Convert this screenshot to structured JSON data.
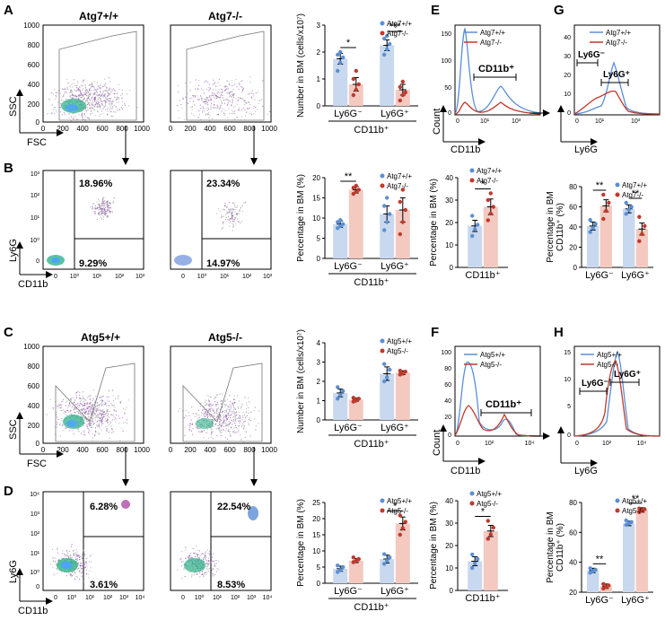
{
  "colors": {
    "wt": "#5b8fd6",
    "ko": "#c0392b",
    "wt_bar": "#c8d8ee",
    "ko_bar": "#f3c9c0",
    "axis": "#000000",
    "gate": "#777777"
  },
  "panels": {
    "A": "A",
    "B": "B",
    "C": "C",
    "D": "D",
    "E": "E",
    "F": "F",
    "G": "G",
    "H": "H"
  },
  "row1": {
    "wt_title": "Atg7+/+",
    "ko_title": "Atg7-/-",
    "ssc": "SSC",
    "fsc": "FSC",
    "ly6g": "Ly6G",
    "cd11b": "CD11b",
    "scatter_yticks": [
      "1000",
      "800",
      "600",
      "400",
      "200",
      "0"
    ],
    "scatter_xticks": [
      "0",
      "200",
      "400",
      "600",
      "800",
      "1000"
    ],
    "log_yticks": [
      "10³",
      "10²",
      "10¹",
      "10⁰",
      "0"
    ],
    "log_xticks": [
      "0",
      "10⁰",
      "10¹",
      "10²",
      "10³"
    ],
    "wt_q_up": "18.96%",
    "wt_q_low": "9.29%",
    "ko_q_up": "23.34%",
    "ko_q_low": "14.97%"
  },
  "row2": {
    "wt_title": "Atg5+/+",
    "ko_title": "Atg5-/-",
    "ssc": "SSC",
    "fsc": "FSC",
    "ly6g": "Ly6G",
    "cd11b": "CD11b",
    "scatter_yticks": [
      "1000",
      "800",
      "600",
      "400",
      "200",
      "0"
    ],
    "scatter_xticks": [
      "0",
      "200",
      "400",
      "600",
      "800",
      "1000"
    ],
    "log_yticks": [
      "10⁴",
      "10³",
      "10²",
      "10¹",
      "10⁰",
      "0"
    ],
    "log_xticks": [
      "0",
      "10⁰",
      "10¹",
      "10²",
      "10³",
      "10⁴"
    ],
    "wt_q_up": "6.28%",
    "wt_q_low": "3.61%",
    "ko_q_up": "22.54%",
    "ko_q_low": "8.53%"
  },
  "hist": {
    "E": {
      "count": "Count",
      "xlabel": "CD11b",
      "gate": "CD11b⁺",
      "yticks": [
        "150",
        "100",
        "50",
        "0"
      ],
      "xticks": [
        "0",
        "10¹",
        "10³"
      ],
      "leg_wt": "Atg7+/+",
      "leg_ko": "Atg7-/-"
    },
    "F": {
      "count": "Count",
      "xlabel": "CD11b",
      "gate": "CD11b⁺",
      "yticks": [
        "100",
        "80",
        "60",
        "40",
        "20",
        "0"
      ],
      "xticks": [
        "0",
        "10²",
        "10⁴"
      ],
      "leg_wt": "Atg5+/+",
      "leg_ko": "Atg5-/-"
    },
    "G": {
      "xlabel": "Ly6G",
      "gate_neg": "Ly6G⁻",
      "gate_pos": "Ly6G⁺",
      "yticks": [
        "40",
        "30",
        "20",
        "10",
        "0"
      ],
      "xticks": [
        "0",
        "10¹",
        "10³"
      ],
      "leg_wt": "Atg7+/+",
      "leg_ko": "Atg7-/-"
    },
    "H": {
      "xlabel": "Ly6G",
      "gate_neg": "Ly6G⁻",
      "gate_pos": "Ly6G⁺",
      "yticks": [
        "15",
        "10",
        "5",
        "0"
      ],
      "xticks": [
        "0",
        "10²",
        "10⁴"
      ],
      "leg_wt": "Atg5+/+",
      "leg_ko": "Atg5-/-"
    }
  },
  "chart_data": [
    {
      "id": "A",
      "type": "bar",
      "ylabel": "Number in BM (cells/x10⁷)",
      "ylim": [
        0,
        3
      ],
      "yticks": [
        "0",
        "1",
        "2",
        "3"
      ],
      "categories": [
        "Ly6G⁻",
        "Ly6G⁺"
      ],
      "group_label": "CD11b⁺",
      "series": [
        {
          "name": "Atg7+/+",
          "values": [
            1.75,
            2.25
          ],
          "err": [
            0.2,
            0.2
          ],
          "points": [
            [
              1.3,
              1.6,
              1.8,
              1.9,
              2.0
            ],
            [
              1.9,
              2.1,
              2.3,
              2.5,
              2.6
            ]
          ]
        },
        {
          "name": "Atg7-/-",
          "values": [
            0.8,
            0.6
          ],
          "err": [
            0.25,
            0.2
          ],
          "points": [
            [
              0.4,
              0.6,
              0.8,
              1.0,
              1.3
            ],
            [
              0.2,
              0.4,
              0.5,
              0.7,
              0.9
            ]
          ]
        }
      ],
      "sig": [
        "*",
        "***"
      ]
    },
    {
      "id": "B",
      "type": "bar",
      "ylabel": "Percentage in BM (%)",
      "ylim": [
        0,
        20
      ],
      "yticks": [
        "0",
        "5",
        "10",
        "15",
        "20"
      ],
      "categories": [
        "Ly6G⁻",
        "Ly6G⁺"
      ],
      "group_label": "CD11b⁺",
      "series": [
        {
          "name": "Atg7+/+",
          "values": [
            8.5,
            11
          ],
          "err": [
            0.8,
            2
          ],
          "points": [
            [
              7.5,
              8,
              8.5,
              9,
              9.5
            ],
            [
              7,
              9,
              11,
              13,
              15
            ]
          ]
        },
        {
          "name": "Atg7-/-",
          "values": [
            17,
            12
          ],
          "err": [
            0.8,
            3
          ],
          "points": [
            [
              16,
              16.5,
              17,
              17.5,
              18
            ],
            [
              6,
              9,
              12,
              14,
              17
            ]
          ]
        }
      ],
      "sig": [
        "**",
        ""
      ]
    },
    {
      "id": "C",
      "type": "bar",
      "ylabel": "Number in BM (cells/x10⁷)",
      "ylim": [
        0,
        4
      ],
      "yticks": [
        "0",
        "1",
        "2",
        "3",
        "4"
      ],
      "categories": [
        "Ly6G⁻",
        "Ly6G⁺"
      ],
      "group_label": "CD11b⁺",
      "series": [
        {
          "name": "Atg5+/+",
          "values": [
            1.4,
            2.4
          ],
          "err": [
            0.2,
            0.35
          ],
          "points": [
            [
              1.1,
              1.3,
              1.5,
              1.7
            ],
            [
              2.0,
              2.2,
              2.6,
              2.9
            ]
          ]
        },
        {
          "name": "Atg5-/-",
          "values": [
            1.05,
            2.45
          ],
          "err": [
            0.08,
            0.1
          ],
          "points": [
            [
              0.95,
              1.0,
              1.1,
              1.15
            ],
            [
              2.35,
              2.4,
              2.5,
              2.55
            ]
          ]
        }
      ],
      "sig": [
        "",
        ""
      ]
    },
    {
      "id": "D",
      "type": "bar",
      "ylabel": "Percentage in BM (%)",
      "ylim": [
        0,
        25
      ],
      "yticks": [
        "0",
        "5",
        "10",
        "15",
        "20",
        "25"
      ],
      "categories": [
        "Ly6G⁻",
        "Ly6G⁺"
      ],
      "group_label": "CD11b⁺",
      "series": [
        {
          "name": "Atg5+/+",
          "values": [
            4.5,
            7.5
          ],
          "err": [
            0.8,
            1.2
          ],
          "points": [
            [
              3.5,
              4,
              5,
              5.5
            ],
            [
              6,
              7,
              8,
              9
            ]
          ]
        },
        {
          "name": "Atg5-/-",
          "values": [
            7,
            18.5
          ],
          "err": [
            0.6,
            2
          ],
          "points": [
            [
              6.5,
              7,
              7.5,
              8
            ],
            [
              15,
              17,
              19,
              21
            ]
          ]
        }
      ],
      "sig": [
        "",
        "*"
      ]
    },
    {
      "id": "E",
      "type": "bar",
      "ylabel": "Percentage in BM (%)",
      "ylim": [
        0,
        40
      ],
      "yticks": [
        "0",
        "10",
        "20",
        "30",
        "40"
      ],
      "categories": [
        "CD11b⁺"
      ],
      "group_label": "",
      "series": [
        {
          "name": "Atg7+/+",
          "values": [
            18.5
          ],
          "err": [
            2.5
          ],
          "points": [
            [
              14,
              17,
              19,
              23
            ]
          ]
        },
        {
          "name": "Atg7-/-",
          "values": [
            27
          ],
          "err": [
            3.5
          ],
          "points": [
            [
              21,
              24,
              27,
              30,
              33
            ]
          ]
        }
      ],
      "sig": [
        "*"
      ]
    },
    {
      "id": "F",
      "type": "bar",
      "ylabel": "Percentage in BM (%)",
      "ylim": [
        0,
        40
      ],
      "yticks": [
        "0",
        "10",
        "20",
        "30",
        "40"
      ],
      "categories": [
        "CD11b⁺"
      ],
      "group_label": "",
      "series": [
        {
          "name": "Atg5+/+",
          "values": [
            13
          ],
          "err": [
            2
          ],
          "points": [
            [
              10,
              12,
              14,
              16
            ]
          ]
        },
        {
          "name": "Atg5-/-",
          "values": [
            26.5
          ],
          "err": [
            2.5
          ],
          "points": [
            [
              23,
              25,
              28,
              31
            ]
          ]
        }
      ],
      "sig": [
        "*"
      ]
    },
    {
      "id": "G",
      "type": "bar",
      "ylabel": "Percentage in BM CD11b⁺ (%)",
      "ylim": [
        0,
        80
      ],
      "yticks": [
        "0",
        "20",
        "40",
        "60",
        "80"
      ],
      "categories": [
        "Ly6G⁻",
        "Ly6G⁺"
      ],
      "group_label": "",
      "series": [
        {
          "name": "Atg7+/+",
          "values": [
            41,
            58
          ],
          "err": [
            4,
            4
          ],
          "points": [
            [
              35,
              39,
              43,
              47
            ],
            [
              53,
              57,
              60,
              64
            ]
          ]
        },
        {
          "name": "Atg7-/-",
          "values": [
            61,
            38
          ],
          "err": [
            6,
            6
          ],
          "points": [
            [
              48,
              56,
              64,
              72
            ],
            [
              26,
              33,
              41,
              50
            ]
          ]
        }
      ],
      "sig": [
        "**",
        "**"
      ]
    },
    {
      "id": "H",
      "type": "bar",
      "ylabel": "Percentage in BM CD11b⁺ (%)",
      "ylim": [
        20,
        80
      ],
      "yticks": [
        "20",
        "40",
        "60",
        "80"
      ],
      "categories": [
        "Ly6G⁻",
        "Ly6G⁺"
      ],
      "group_label": "",
      "series": [
        {
          "name": "Atg5+/+",
          "values": [
            34.5,
            66
          ],
          "err": [
            1.5,
            1.5
          ],
          "points": [
            [
              33,
              34,
              35,
              36
            ],
            [
              65,
              66,
              67,
              68
            ]
          ]
        },
        {
          "name": "Atg5-/-",
          "values": [
            24,
            75
          ],
          "err": [
            1.5,
            1.5
          ],
          "points": [
            [
              22.5,
              23.5,
              24.5,
              25.5
            ],
            [
              73.5,
              74.5,
              75.5,
              76
            ]
          ]
        }
      ],
      "sig": [
        "**",
        "**"
      ]
    }
  ]
}
